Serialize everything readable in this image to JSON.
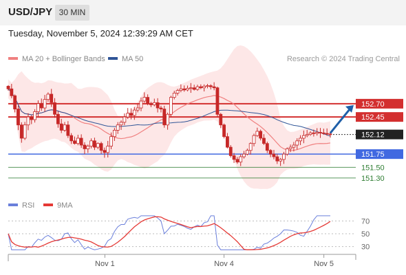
{
  "header": {
    "symbol": "USD/JPY",
    "timeframe": "30 MIN",
    "datetime": "Tuesday, November 5, 2024 12:39:29 AM CET"
  },
  "legend": {
    "ma20_label": "MA 20 + Bollinger Bands",
    "ma50_label": "MA 50",
    "credit": "Research © 2024 Trading Central"
  },
  "rsi_legend": {
    "rsi_label": "RSI",
    "ma_label": "9MA"
  },
  "colors": {
    "ma20": "#f08080",
    "ma50": "#2f5597",
    "band_fill": "#fde3e3",
    "candle": "#c62828",
    "resistance": "#d32f2f",
    "pivot": "#4169e1",
    "support": "#2e7d32",
    "rsi": "#6a7fdb",
    "rsi_ma": "#e53935",
    "arrow": "#1f5fa8"
  },
  "chart_data": [
    {
      "type": "candlestick",
      "x_tick_labels": [
        "Nov 1",
        "Nov 4",
        "Nov 5"
      ],
      "y_range": [
        151.0,
        153.1
      ],
      "levels": [
        {
          "label": "152.70",
          "value": 152.7,
          "kind": "resistance"
        },
        {
          "label": "152.45",
          "value": 152.45,
          "kind": "resistance"
        },
        {
          "label": "152.12",
          "value": 152.12,
          "kind": "current"
        },
        {
          "label": "151.75",
          "value": 151.75,
          "kind": "pivot"
        },
        {
          "label": "151.50",
          "value": 151.5,
          "kind": "support"
        },
        {
          "label": "151.30",
          "value": 151.3,
          "kind": "support"
        }
      ],
      "current_price": 152.12,
      "series": [
        {
          "name": "MA 20 + Bollinger Bands"
        },
        {
          "name": "MA 50"
        }
      ],
      "close": [
        152.98,
        152.85,
        152.6,
        152.3,
        152.05,
        152.3,
        152.45,
        152.4,
        152.55,
        152.7,
        152.62,
        152.78,
        152.88,
        152.72,
        152.5,
        152.32,
        152.2,
        152.3,
        152.1,
        152.0,
        151.95,
        152.05,
        151.92,
        151.85,
        151.9,
        152.0,
        151.88,
        151.95,
        151.82,
        151.78,
        151.9,
        152.08,
        152.2,
        152.3,
        152.35,
        152.45,
        152.52,
        152.48,
        152.58,
        152.62,
        152.75,
        152.82,
        152.7,
        152.68,
        152.72,
        152.62,
        152.6,
        152.3,
        152.5,
        152.82,
        152.9,
        152.95,
        152.98,
        152.96,
        152.99,
        153.0,
        152.97,
        153.02,
        153.0,
        153.03,
        153.04,
        153.02,
        153.0
      ],
      "close_segment2": [
        152.5,
        152.3,
        152.08,
        151.88,
        151.72,
        151.65,
        151.6,
        151.7,
        151.75,
        151.82,
        151.95,
        152.1,
        152.18,
        152.05,
        151.95,
        151.82,
        151.75,
        151.7,
        151.62,
        151.65,
        151.75,
        151.85,
        151.88,
        151.92,
        152.0,
        152.05,
        152.1,
        152.12,
        152.15,
        152.14,
        152.16,
        152.15,
        152.14,
        152.13,
        152.12
      ],
      "rsi": {
        "levels": [
          70,
          50,
          30
        ],
        "range": [
          20,
          80
        ]
      }
    }
  ]
}
